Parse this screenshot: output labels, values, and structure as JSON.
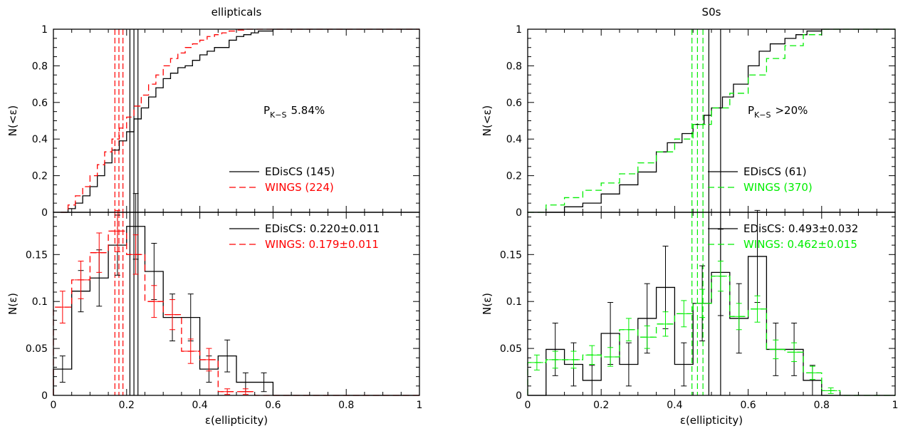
{
  "colors": {
    "edisCS": "#000000",
    "wings_ell": "#ff0000",
    "wings_s0": "#00ee00"
  },
  "chart_data": [
    {
      "type": "line",
      "panel": "ellipticals-cumulative",
      "title": "ellipticals",
      "xlabel": "",
      "ylabel": "N(<ε)",
      "xlim": [
        0,
        1
      ],
      "ylim": [
        0,
        1
      ],
      "xticks": [
        0,
        0.2,
        0.4,
        0.6,
        0.8,
        1
      ],
      "xtick_labels": [
        "",
        "",
        "",
        "",
        "",
        ""
      ],
      "yticks": [
        0,
        0.2,
        0.4,
        0.6,
        0.8,
        1
      ],
      "ytick_labels": [
        "0",
        "0.2",
        "0.4",
        "0.6",
        "0.8",
        "1"
      ],
      "annotation": {
        "main": "P",
        "sub": "K−S",
        "value": "5.84%"
      },
      "legend": [
        {
          "label": "EDisCS (145)",
          "series": "EDisCS"
        },
        {
          "label": "WINGS (224)",
          "series": "WINGS"
        }
      ],
      "series": [
        {
          "name": "EDisCS",
          "style": "step",
          "color": "#000000",
          "x": [
            0.02,
            0.04,
            0.06,
            0.08,
            0.1,
            0.12,
            0.14,
            0.16,
            0.18,
            0.2,
            0.22,
            0.24,
            0.26,
            0.28,
            0.3,
            0.32,
            0.34,
            0.36,
            0.38,
            0.4,
            0.42,
            0.44,
            0.46,
            0.48,
            0.5,
            0.52,
            0.54,
            0.56,
            0.58,
            0.6
          ],
          "y": [
            0.0,
            0.02,
            0.05,
            0.09,
            0.14,
            0.2,
            0.27,
            0.34,
            0.39,
            0.44,
            0.51,
            0.57,
            0.63,
            0.68,
            0.73,
            0.76,
            0.79,
            0.8,
            0.83,
            0.86,
            0.88,
            0.9,
            0.9,
            0.94,
            0.96,
            0.97,
            0.98,
            0.99,
            0.99,
            1.0
          ]
        },
        {
          "name": "WINGS",
          "style": "dash",
          "color": "#ff0000",
          "x": [
            0.02,
            0.04,
            0.06,
            0.08,
            0.1,
            0.12,
            0.14,
            0.16,
            0.18,
            0.2,
            0.22,
            0.24,
            0.26,
            0.28,
            0.3,
            0.32,
            0.34,
            0.36,
            0.38,
            0.4,
            0.42,
            0.44,
            0.46,
            0.48,
            0.5,
            0.52,
            0.54
          ],
          "y": [
            0.0,
            0.04,
            0.09,
            0.14,
            0.2,
            0.26,
            0.33,
            0.4,
            0.46,
            0.52,
            0.58,
            0.64,
            0.7,
            0.75,
            0.8,
            0.84,
            0.87,
            0.9,
            0.92,
            0.94,
            0.96,
            0.97,
            0.98,
            0.99,
            0.995,
            1.0,
            1.0
          ]
        }
      ],
      "vlines": [
        {
          "x": 0.209,
          "color": "#000000",
          "style": "solid"
        },
        {
          "x": 0.22,
          "color": "#000000",
          "style": "solid"
        },
        {
          "x": 0.231,
          "color": "#000000",
          "style": "solid"
        },
        {
          "x": 0.168,
          "color": "#ff0000",
          "style": "dash"
        },
        {
          "x": 0.179,
          "color": "#ff0000",
          "style": "dash"
        },
        {
          "x": 0.19,
          "color": "#ff0000",
          "style": "dash"
        }
      ]
    },
    {
      "type": "bar",
      "panel": "ellipticals-histogram",
      "title": "",
      "xlabel": "ε(ellipticity)",
      "ylabel": "N(ε)",
      "xlim": [
        0,
        1
      ],
      "ylim": [
        0,
        0.195
      ],
      "xticks": [
        0,
        0.2,
        0.4,
        0.6,
        0.8,
        1
      ],
      "xtick_labels": [
        "0",
        "0.2",
        "0.4",
        "0.6",
        "0.8",
        "1"
      ],
      "yticks": [
        0,
        0.05,
        0.1,
        0.15
      ],
      "ytick_labels": [
        "0",
        "0.05",
        "0.1",
        "0.15"
      ],
      "legend": [
        {
          "label": "EDisCS: 0.220±0.011",
          "series": "EDisCS"
        },
        {
          "label": "WINGS: 0.179±0.011",
          "series": "WINGS"
        }
      ],
      "series": [
        {
          "name": "EDisCS",
          "style": "step",
          "color": "#000000",
          "bin_width": 0.05,
          "bin_starts": [
            0,
            0.05,
            0.1,
            0.15,
            0.2,
            0.25,
            0.3,
            0.35,
            0.4,
            0.45,
            0.5,
            0.55,
            0.6,
            0.65,
            0.7,
            0.75,
            0.8,
            0.85,
            0.9,
            0.95
          ],
          "values": [
            0.028,
            0.111,
            0.125,
            0.16,
            0.18,
            0.132,
            0.083,
            0.083,
            0.028,
            0.042,
            0.014,
            0.014,
            0,
            0,
            0,
            0,
            0,
            0,
            0,
            0
          ],
          "errors": [
            0.014,
            0.022,
            0.03,
            0.032,
            0.035,
            0.03,
            0.025,
            0.025,
            0.014,
            0.017,
            0.01,
            0.01,
            0,
            0,
            0,
            0,
            0,
            0,
            0,
            0
          ],
          "error_x": [
            0.025,
            0.075,
            0.125,
            0.175,
            0.225,
            0.275,
            0.325,
            0.375,
            0.425,
            0.475,
            0.525,
            0.575
          ]
        },
        {
          "name": "WINGS",
          "style": "dash",
          "color": "#ff0000",
          "bin_width": 0.05,
          "bin_starts": [
            0,
            0.05,
            0.1,
            0.15,
            0.2,
            0.25,
            0.3,
            0.35,
            0.4,
            0.45,
            0.5,
            0.55,
            0.6,
            0.65,
            0.7,
            0.75,
            0.8,
            0.85,
            0.9,
            0.95
          ],
          "values": [
            0.094,
            0.123,
            0.152,
            0.175,
            0.15,
            0.1,
            0.086,
            0.047,
            0.038,
            0.004,
            0.004,
            0,
            0,
            0,
            0,
            0,
            0,
            0,
            0,
            0
          ],
          "errors": [
            0.017,
            0.02,
            0.021,
            0.022,
            0.021,
            0.017,
            0.016,
            0.013,
            0.012,
            0.003,
            0.003,
            0,
            0,
            0,
            0,
            0,
            0,
            0,
            0,
            0
          ],
          "error_x": [
            0.025,
            0.075,
            0.125,
            0.175,
            0.225,
            0.275,
            0.325,
            0.375,
            0.425,
            0.475,
            0.525
          ]
        }
      ],
      "vlines": [
        {
          "x": 0.209,
          "color": "#000000",
          "style": "solid"
        },
        {
          "x": 0.22,
          "color": "#000000",
          "style": "solid"
        },
        {
          "x": 0.231,
          "color": "#000000",
          "style": "solid"
        },
        {
          "x": 0.168,
          "color": "#ff0000",
          "style": "dash"
        },
        {
          "x": 0.179,
          "color": "#ff0000",
          "style": "dash"
        },
        {
          "x": 0.19,
          "color": "#ff0000",
          "style": "dash"
        }
      ]
    },
    {
      "type": "line",
      "panel": "s0s-cumulative",
      "title": "S0s",
      "xlabel": "",
      "ylabel": "N(<ε)",
      "xlim": [
        0,
        1
      ],
      "ylim": [
        0,
        1
      ],
      "xticks": [
        0,
        0.2,
        0.4,
        0.6,
        0.8,
        1
      ],
      "xtick_labels": [
        "",
        "",
        "",
        "",
        "",
        ""
      ],
      "yticks": [
        0,
        0.2,
        0.4,
        0.6,
        0.8,
        1
      ],
      "ytick_labels": [
        "0",
        "0.2",
        "0.4",
        "0.6",
        "0.8",
        "1"
      ],
      "annotation": {
        "main": "P",
        "sub": "K−S",
        "value": ">20%"
      },
      "legend": [
        {
          "label": "EDisCS (61)",
          "series": "EDisCS"
        },
        {
          "label": "WINGS (370)",
          "series": "WINGS"
        }
      ],
      "series": [
        {
          "name": "EDisCS",
          "style": "step",
          "color": "#000000",
          "x": [
            0.05,
            0.1,
            0.15,
            0.2,
            0.25,
            0.3,
            0.35,
            0.38,
            0.42,
            0.45,
            0.48,
            0.5,
            0.53,
            0.56,
            0.6,
            0.63,
            0.66,
            0.7,
            0.73,
            0.76,
            0.8
          ],
          "y": [
            0.0,
            0.03,
            0.05,
            0.1,
            0.15,
            0.22,
            0.33,
            0.38,
            0.43,
            0.48,
            0.53,
            0.57,
            0.63,
            0.7,
            0.8,
            0.88,
            0.92,
            0.95,
            0.97,
            0.99,
            1.0
          ]
        },
        {
          "name": "WINGS",
          "style": "dash",
          "color": "#00ee00",
          "x": [
            0.0,
            0.05,
            0.1,
            0.15,
            0.2,
            0.25,
            0.3,
            0.35,
            0.4,
            0.45,
            0.5,
            0.55,
            0.6,
            0.65,
            0.7,
            0.75,
            0.8
          ],
          "y": [
            0.0,
            0.04,
            0.08,
            0.12,
            0.16,
            0.21,
            0.27,
            0.33,
            0.4,
            0.48,
            0.57,
            0.65,
            0.75,
            0.84,
            0.91,
            0.97,
            1.0
          ]
        }
      ],
      "vlines": [
        {
          "x": 0.493,
          "color": "#000000",
          "style": "solid"
        },
        {
          "x": 0.525,
          "color": "#000000",
          "style": "solid"
        },
        {
          "x": 0.447,
          "color": "#00ee00",
          "style": "dash"
        },
        {
          "x": 0.462,
          "color": "#00ee00",
          "style": "dash"
        },
        {
          "x": 0.477,
          "color": "#00ee00",
          "style": "dash"
        }
      ]
    },
    {
      "type": "bar",
      "panel": "s0s-histogram",
      "title": "",
      "xlabel": "ε(ellipticity)",
      "ylabel": "N(ε)",
      "xlim": [
        0,
        1
      ],
      "ylim": [
        0,
        0.195
      ],
      "xticks": [
        0,
        0.2,
        0.4,
        0.6,
        0.8,
        1
      ],
      "xtick_labels": [
        "0",
        "0.2",
        "0.4",
        "0.6",
        "0.8",
        "1"
      ],
      "yticks": [
        0,
        0.05,
        0.1,
        0.15
      ],
      "ytick_labels": [
        "0",
        "0.05",
        "0.1",
        "0.15"
      ],
      "legend": [
        {
          "label": "EDisCS: 0.493±0.032",
          "series": "EDisCS"
        },
        {
          "label": "WINGS: 0.462±0.015",
          "series": "WINGS"
        }
      ],
      "series": [
        {
          "name": "EDisCS",
          "style": "step",
          "color": "#000000",
          "bin_width": 0.05,
          "bin_starts": [
            0,
            0.05,
            0.1,
            0.15,
            0.2,
            0.25,
            0.3,
            0.35,
            0.4,
            0.45,
            0.5,
            0.55,
            0.6,
            0.65,
            0.7,
            0.75,
            0.8,
            0.85,
            0.9,
            0.95
          ],
          "values": [
            0,
            0.049,
            0.033,
            0.016,
            0.066,
            0.033,
            0.082,
            0.115,
            0.033,
            0.098,
            0.131,
            0.082,
            0.148,
            0.049,
            0.049,
            0.016,
            0,
            0,
            0,
            0
          ],
          "errors": [
            0,
            0.028,
            0.023,
            0.016,
            0.033,
            0.023,
            0.037,
            0.044,
            0.023,
            0.04,
            0.046,
            0.037,
            0.049,
            0.028,
            0.028,
            0.016,
            0,
            0,
            0,
            0
          ],
          "error_x": [
            0.075,
            0.125,
            0.175,
            0.225,
            0.275,
            0.325,
            0.375,
            0.425,
            0.475,
            0.525,
            0.575,
            0.625,
            0.675,
            0.725,
            0.775
          ]
        },
        {
          "name": "WINGS",
          "style": "dash",
          "color": "#00ee00",
          "bin_width": 0.05,
          "bin_starts": [
            0,
            0.05,
            0.1,
            0.15,
            0.2,
            0.25,
            0.3,
            0.35,
            0.4,
            0.45,
            0.5,
            0.55,
            0.6,
            0.65,
            0.7,
            0.75,
            0.8,
            0.85,
            0.9,
            0.95
          ],
          "values": [
            0.035,
            0.038,
            0.038,
            0.043,
            0.041,
            0.07,
            0.062,
            0.076,
            0.087,
            0.098,
            0.127,
            0.084,
            0.092,
            0.049,
            0.046,
            0.024,
            0.005,
            0,
            0,
            0
          ],
          "errors": [
            0.008,
            0.009,
            0.009,
            0.01,
            0.01,
            0.012,
            0.012,
            0.013,
            0.014,
            0.015,
            0.016,
            0.014,
            0.014,
            0.01,
            0.01,
            0.007,
            0.003,
            0,
            0,
            0
          ],
          "error_x": [
            0.025,
            0.075,
            0.125,
            0.175,
            0.225,
            0.275,
            0.325,
            0.375,
            0.425,
            0.475,
            0.525,
            0.575,
            0.625,
            0.675,
            0.725,
            0.775,
            0.825
          ]
        }
      ],
      "vlines": [
        {
          "x": 0.493,
          "color": "#000000",
          "style": "solid"
        },
        {
          "x": 0.525,
          "color": "#000000",
          "style": "solid"
        },
        {
          "x": 0.447,
          "color": "#00ee00",
          "style": "dash"
        },
        {
          "x": 0.462,
          "color": "#00ee00",
          "style": "dash"
        },
        {
          "x": 0.477,
          "color": "#00ee00",
          "style": "dash"
        }
      ]
    }
  ]
}
